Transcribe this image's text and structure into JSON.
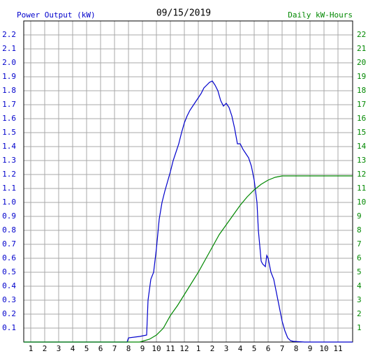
{
  "chart_data": {
    "type": "line",
    "title": "09/15/2019",
    "y_label": "Power Output (kW)",
    "y2_label": "Daily kW-Hours",
    "xlim": [
      0.5,
      24.05
    ],
    "xticks": [
      {
        "value": 1,
        "label": "1"
      },
      {
        "value": 2,
        "label": "2"
      },
      {
        "value": 3,
        "label": "3"
      },
      {
        "value": 4,
        "label": "4"
      },
      {
        "value": 5,
        "label": "5"
      },
      {
        "value": 6,
        "label": "6"
      },
      {
        "value": 7,
        "label": "7"
      },
      {
        "value": 8,
        "label": "8"
      },
      {
        "value": 9,
        "label": "9"
      },
      {
        "value": 10,
        "label": "10"
      },
      {
        "value": 11,
        "label": "11"
      },
      {
        "value": 12,
        "label": "12"
      },
      {
        "value": 13,
        "label": "1"
      },
      {
        "value": 14,
        "label": "2"
      },
      {
        "value": 15,
        "label": "3"
      },
      {
        "value": 16,
        "label": "4"
      },
      {
        "value": 17,
        "label": "5"
      },
      {
        "value": 18,
        "label": "6"
      },
      {
        "value": 19,
        "label": "7"
      },
      {
        "value": 20,
        "label": "8"
      },
      {
        "value": 21,
        "label": "9"
      },
      {
        "value": 22,
        "label": "10"
      },
      {
        "value": 23,
        "label": "11"
      }
    ],
    "ylim": [
      0,
      2.3
    ],
    "yticks": [
      0.1,
      0.2,
      0.3,
      0.4,
      0.5,
      0.6,
      0.7,
      0.8,
      0.9,
      {
        "value": 1,
        "label": "1.0"
      },
      1.1,
      1.2,
      1.3,
      1.4,
      1.5,
      1.6,
      1.7,
      1.8,
      1.9,
      {
        "value": 2,
        "label": "2.0"
      },
      2.1,
      2.2
    ],
    "y2lim": [
      0,
      23
    ],
    "y2ticks": [
      1,
      2,
      3,
      4,
      5,
      6,
      7,
      8,
      9,
      10,
      11,
      12,
      13,
      14,
      15,
      16,
      17,
      18,
      19,
      20,
      21,
      22
    ],
    "grid": true,
    "series": [
      {
        "name": "Power Output (kW)",
        "color": "#0000cc",
        "x": [
          0.5,
          7.9,
          8,
          8.8,
          9.3,
          9.4,
          9.6,
          9.8,
          10,
          10.2,
          10.4,
          10.6,
          10.8,
          11,
          11.2,
          11.4,
          11.6,
          11.8,
          12,
          12.2,
          12.4,
          12.6,
          12.8,
          13,
          13.2,
          13.4,
          13.6,
          13.8,
          14,
          14.2,
          14.4,
          14.6,
          14.8,
          15,
          15.2,
          15.4,
          15.6,
          15.8,
          16,
          16.2,
          16.4,
          16.6,
          16.8,
          17,
          17.1,
          17.2,
          17.3,
          17.5,
          17.6,
          17.8,
          17.9,
          18,
          18.2,
          18.4,
          18.6,
          18.8,
          19,
          19.2,
          19.4,
          19.6,
          19.8,
          20.6,
          24.05
        ],
        "values": [
          0,
          0,
          0.03,
          0.04,
          0.05,
          0.3,
          0.45,
          0.5,
          0.67,
          0.88,
          1.0,
          1.08,
          1.15,
          1.22,
          1.3,
          1.36,
          1.42,
          1.5,
          1.57,
          1.62,
          1.66,
          1.69,
          1.72,
          1.75,
          1.78,
          1.82,
          1.84,
          1.86,
          1.87,
          1.84,
          1.8,
          1.73,
          1.69,
          1.71,
          1.68,
          1.62,
          1.53,
          1.42,
          1.42,
          1.38,
          1.35,
          1.32,
          1.26,
          1.16,
          1.08,
          1.0,
          0.8,
          0.58,
          0.56,
          0.54,
          0.62,
          0.6,
          0.5,
          0.45,
          0.35,
          0.25,
          0.15,
          0.08,
          0.03,
          0.01,
          0.005,
          0,
          0
        ]
      },
      {
        "name": "Daily kW-Hours",
        "color": "#008800",
        "axis": "y2",
        "x": [
          0.5,
          8.8,
          9.5,
          10,
          10.5,
          11,
          11.5,
          12,
          12.5,
          13,
          13.5,
          14,
          14.5,
          15,
          15.5,
          16,
          16.5,
          17,
          17.5,
          18,
          18.5,
          19,
          24.05
        ],
        "values": [
          0,
          0,
          0.2,
          0.5,
          1.0,
          1.9,
          2.6,
          3.4,
          4.2,
          5.0,
          5.9,
          6.8,
          7.7,
          8.4,
          9.1,
          9.8,
          10.4,
          10.9,
          11.3,
          11.6,
          11.8,
          11.9,
          11.9
        ]
      }
    ]
  }
}
